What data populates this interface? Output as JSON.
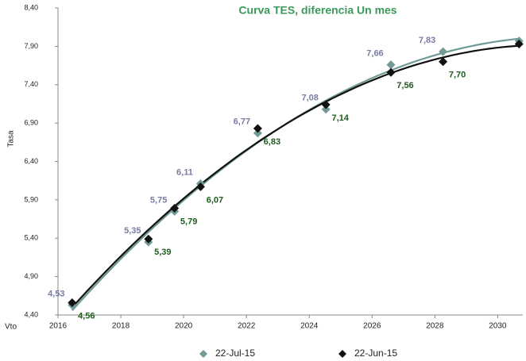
{
  "chart_data": {
    "type": "scatter",
    "title": "Curva TES, diferencia Un mes",
    "y_label": "Tasa",
    "x_label": "Vto",
    "xlim": [
      2016,
      2030.8
    ],
    "xticks": [
      2016,
      2018,
      2020,
      2022,
      2024,
      2026,
      2028,
      2030
    ],
    "ylim": [
      4.4,
      8.4
    ],
    "yticks": [
      {
        "value": 4.4,
        "label": "4,40"
      },
      {
        "value": 4.9,
        "label": "4,90"
      },
      {
        "value": 5.4,
        "label": "5,40"
      },
      {
        "value": 5.9,
        "label": "5,90"
      },
      {
        "value": 6.4,
        "label": "6,40"
      },
      {
        "value": 6.9,
        "label": "6,90"
      },
      {
        "value": 7.4,
        "label": "7,40"
      },
      {
        "value": 7.9,
        "label": "7,90"
      },
      {
        "value": 8.4,
        "label": "8,40"
      }
    ],
    "trendline": true,
    "series": [
      {
        "name": "22-Jul-15",
        "color": "#6f9a96",
        "label_color": "#7a7aa6",
        "x": [
          2016.45,
          2018.88,
          2019.71,
          2020.54,
          2022.36,
          2024.53,
          2026.6,
          2028.26,
          2030.68
        ],
        "values": [
          4.53,
          5.35,
          5.75,
          6.11,
          6.77,
          7.08,
          7.66,
          7.83,
          7.97
        ],
        "value_labels": [
          "4,53",
          "5,35",
          "5,75",
          "6,11",
          "6,77",
          "7,08",
          "7,66",
          "7,83",
          null
        ]
      },
      {
        "name": "22-Jun-15",
        "color": "#111111",
        "label_color": "#1f5c1f",
        "x": [
          2016.45,
          2018.88,
          2019.71,
          2020.54,
          2022.36,
          2024.53,
          2026.6,
          2028.26,
          2030.68
        ],
        "values": [
          4.56,
          5.39,
          5.79,
          6.07,
          6.83,
          7.14,
          7.56,
          7.7,
          7.93
        ],
        "value_labels": [
          "4,56",
          "5,39",
          "5,79",
          "6,07",
          "6,83",
          "7,14",
          "7,56",
          "7,70",
          null
        ]
      }
    ]
  }
}
